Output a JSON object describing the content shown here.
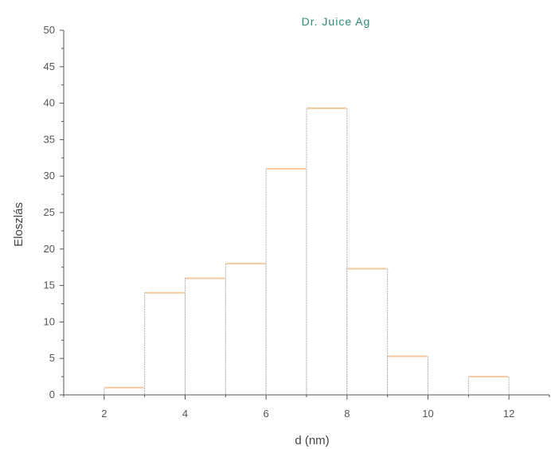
{
  "chart_data": {
    "type": "bar",
    "title": "Dr. Juice Ag",
    "xlabel": "d (nm)",
    "ylabel": "Eloszlás",
    "xlim": [
      1,
      13
    ],
    "ylim": [
      0,
      50
    ],
    "xticks": [
      2,
      4,
      6,
      8,
      10,
      12
    ],
    "yticks": [
      0,
      5,
      10,
      15,
      20,
      25,
      30,
      35,
      40,
      45,
      50
    ],
    "bins": [
      {
        "from": 2,
        "to": 3,
        "value": 1
      },
      {
        "from": 3,
        "to": 4,
        "value": 14
      },
      {
        "from": 4,
        "to": 5,
        "value": 16
      },
      {
        "from": 5,
        "to": 6,
        "value": 18
      },
      {
        "from": 6,
        "to": 7,
        "value": 31
      },
      {
        "from": 7,
        "to": 8,
        "value": 39.3
      },
      {
        "from": 8,
        "to": 9,
        "value": 17.3
      },
      {
        "from": 9,
        "to": 10,
        "value": 5.3
      },
      {
        "from": 10,
        "to": 11,
        "value": 0
      },
      {
        "from": 11,
        "to": 12,
        "value": 2.5
      }
    ],
    "grid": false,
    "colors": {
      "title": "#2e8b74",
      "bar_outline": "#b0b0b0",
      "bar_highlight": "#f4c9a0",
      "axis": "#555555"
    }
  }
}
